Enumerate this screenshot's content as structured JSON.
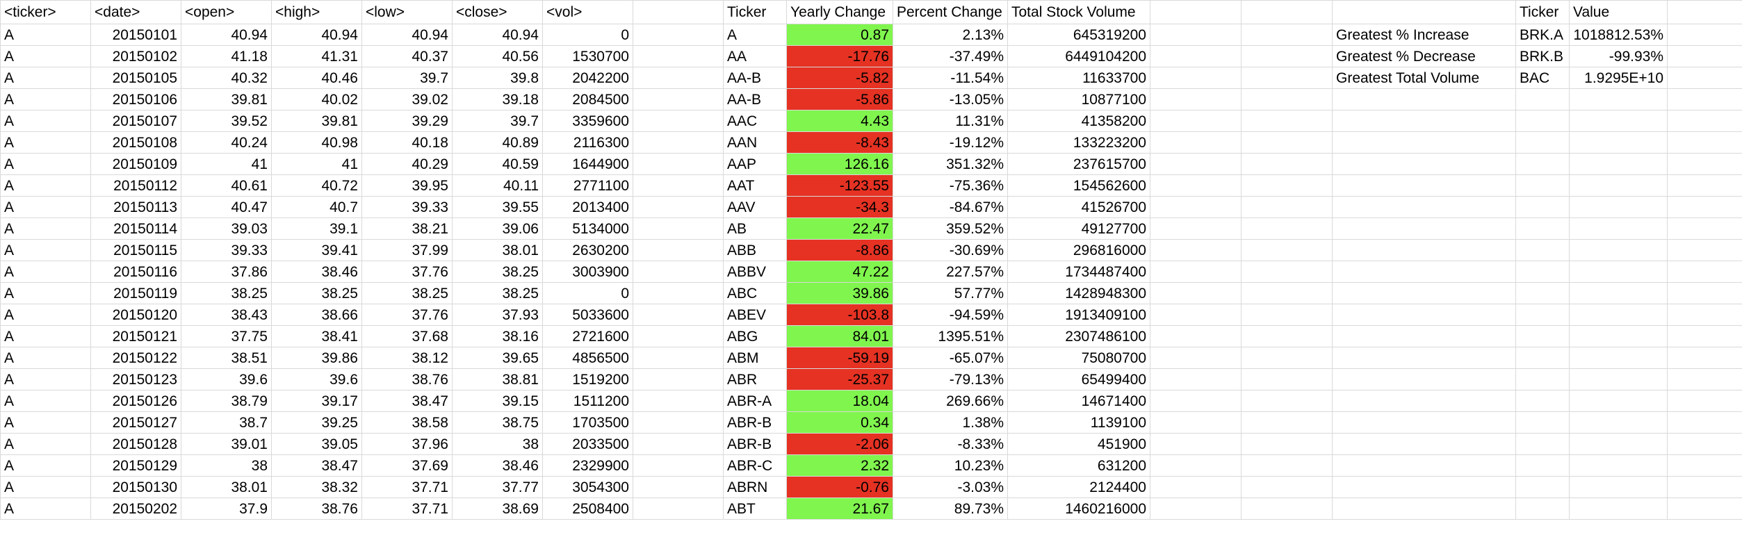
{
  "colors": {
    "positive": "#80f54e",
    "negative": "#e53223",
    "gridline": "#d9d9d9"
  },
  "raw_headers": [
    "<ticker>",
    "<date>",
    "<open>",
    "<high>",
    "<low>",
    "<close>",
    "<vol>"
  ],
  "raw_rows": [
    [
      "A",
      "20150101",
      "40.94",
      "40.94",
      "40.94",
      "40.94",
      "0"
    ],
    [
      "A",
      "20150102",
      "41.18",
      "41.31",
      "40.37",
      "40.56",
      "1530700"
    ],
    [
      "A",
      "20150105",
      "40.32",
      "40.46",
      "39.7",
      "39.8",
      "2042200"
    ],
    [
      "A",
      "20150106",
      "39.81",
      "40.02",
      "39.02",
      "39.18",
      "2084500"
    ],
    [
      "A",
      "20150107",
      "39.52",
      "39.81",
      "39.29",
      "39.7",
      "3359600"
    ],
    [
      "A",
      "20150108",
      "40.24",
      "40.98",
      "40.18",
      "40.89",
      "2116300"
    ],
    [
      "A",
      "20150109",
      "41",
      "41",
      "40.29",
      "40.59",
      "1644900"
    ],
    [
      "A",
      "20150112",
      "40.61",
      "40.72",
      "39.95",
      "40.11",
      "2771100"
    ],
    [
      "A",
      "20150113",
      "40.47",
      "40.7",
      "39.33",
      "39.55",
      "2013400"
    ],
    [
      "A",
      "20150114",
      "39.03",
      "39.1",
      "38.21",
      "39.06",
      "5134000"
    ],
    [
      "A",
      "20150115",
      "39.33",
      "39.41",
      "37.99",
      "38.01",
      "2630200"
    ],
    [
      "A",
      "20150116",
      "37.86",
      "38.46",
      "37.76",
      "38.25",
      "3003900"
    ],
    [
      "A",
      "20150119",
      "38.25",
      "38.25",
      "38.25",
      "38.25",
      "0"
    ],
    [
      "A",
      "20150120",
      "38.43",
      "38.66",
      "37.76",
      "37.93",
      "5033600"
    ],
    [
      "A",
      "20150121",
      "37.75",
      "38.41",
      "37.68",
      "38.16",
      "2721600"
    ],
    [
      "A",
      "20150122",
      "38.51",
      "39.86",
      "38.12",
      "39.65",
      "4856500"
    ],
    [
      "A",
      "20150123",
      "39.6",
      "39.6",
      "38.76",
      "38.81",
      "1519200"
    ],
    [
      "A",
      "20150126",
      "38.79",
      "39.17",
      "38.47",
      "39.15",
      "1511200"
    ],
    [
      "A",
      "20150127",
      "38.7",
      "39.25",
      "38.58",
      "38.75",
      "1703500"
    ],
    [
      "A",
      "20150128",
      "39.01",
      "39.05",
      "37.96",
      "38",
      "2033500"
    ],
    [
      "A",
      "20150129",
      "38",
      "38.47",
      "37.69",
      "38.46",
      "2329900"
    ],
    [
      "A",
      "20150130",
      "38.01",
      "38.32",
      "37.71",
      "37.77",
      "3054300"
    ],
    [
      "A",
      "20150202",
      "37.9",
      "38.76",
      "37.71",
      "38.69",
      "2508400"
    ]
  ],
  "summary_headers": [
    "Ticker",
    "Yearly Change",
    "Percent Change",
    "Total Stock Volume"
  ],
  "summary_rows": [
    [
      "A",
      "0.87",
      "2.13%",
      "645319200",
      "pos"
    ],
    [
      "AA",
      "-17.76",
      "-37.49%",
      "6449104200",
      "neg"
    ],
    [
      "AA-B",
      "-5.82",
      "-11.54%",
      "11633700",
      "neg"
    ],
    [
      "AA-B",
      "-5.86",
      "-13.05%",
      "10877100",
      "neg"
    ],
    [
      "AAC",
      "4.43",
      "11.31%",
      "41358200",
      "pos"
    ],
    [
      "AAN",
      "-8.43",
      "-19.12%",
      "133223200",
      "neg"
    ],
    [
      "AAP",
      "126.16",
      "351.32%",
      "237615700",
      "pos"
    ],
    [
      "AAT",
      "-123.55",
      "-75.36%",
      "154562600",
      "neg"
    ],
    [
      "AAV",
      "-34.3",
      "-84.67%",
      "41526700",
      "neg"
    ],
    [
      "AB",
      "22.47",
      "359.52%",
      "49127700",
      "pos"
    ],
    [
      "ABB",
      "-8.86",
      "-30.69%",
      "296816000",
      "neg"
    ],
    [
      "ABBV",
      "47.22",
      "227.57%",
      "1734487400",
      "pos"
    ],
    [
      "ABC",
      "39.86",
      "57.77%",
      "1428948300",
      "pos"
    ],
    [
      "ABEV",
      "-103.8",
      "-94.59%",
      "1913409100",
      "neg"
    ],
    [
      "ABG",
      "84.01",
      "1395.51%",
      "2307486100",
      "pos"
    ],
    [
      "ABM",
      "-59.19",
      "-65.07%",
      "75080700",
      "neg"
    ],
    [
      "ABR",
      "-25.37",
      "-79.13%",
      "65499400",
      "neg"
    ],
    [
      "ABR-A",
      "18.04",
      "269.66%",
      "14671400",
      "pos"
    ],
    [
      "ABR-B",
      "0.34",
      "1.38%",
      "1139100",
      "pos"
    ],
    [
      "ABR-B",
      "-2.06",
      "-8.33%",
      "451900",
      "neg"
    ],
    [
      "ABR-C",
      "2.32",
      "10.23%",
      "631200",
      "pos"
    ],
    [
      "ABRN",
      "-0.76",
      "-3.03%",
      "2124400",
      "neg"
    ],
    [
      "ABT",
      "21.67",
      "89.73%",
      "1460216000",
      "pos"
    ]
  ],
  "greatest_headers": [
    "Ticker",
    "Value"
  ],
  "greatest_rows": [
    [
      "Greatest % Increase",
      "BRK.A",
      "1018812.53%"
    ],
    [
      "Greatest % Decrease",
      "BRK.B",
      "-99.93%"
    ],
    [
      "Greatest Total Volume",
      "BAC",
      "1.9295E+10"
    ]
  ]
}
